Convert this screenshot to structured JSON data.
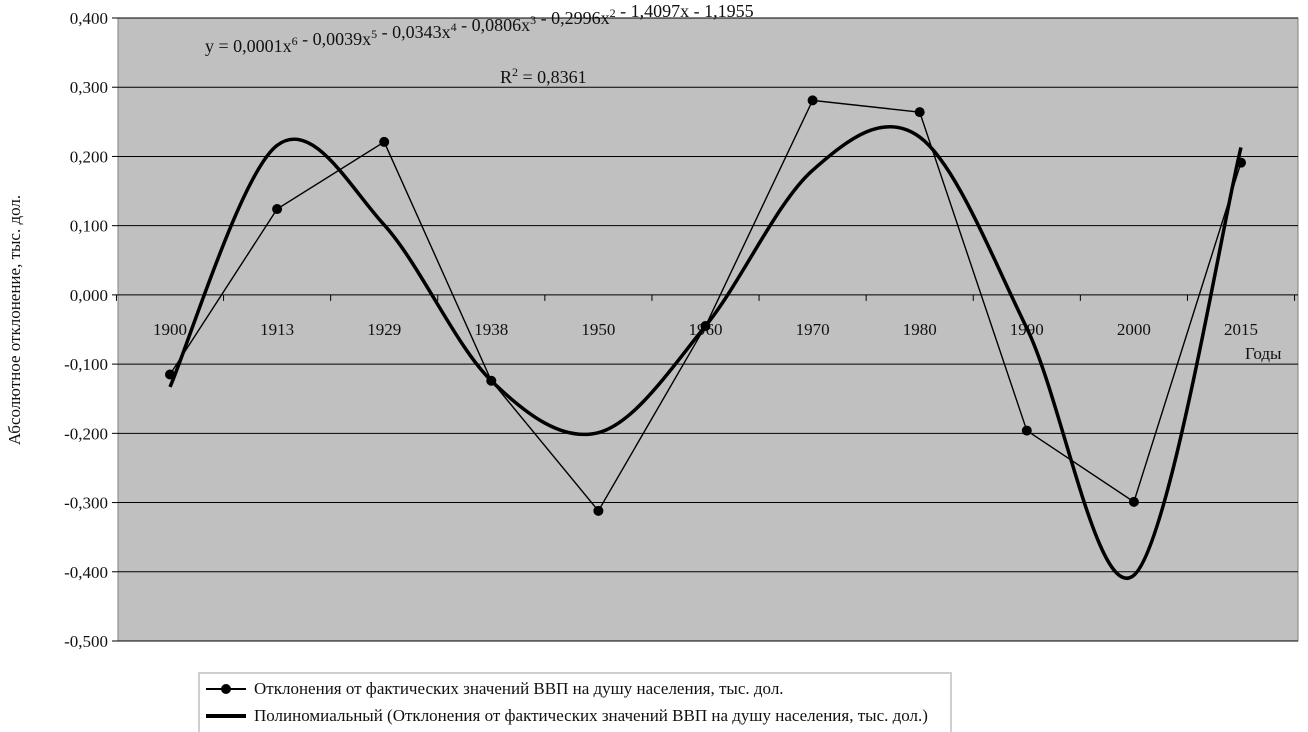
{
  "chart_data": {
    "type": "line",
    "x_categories": [
      "1900",
      "1913",
      "1929",
      "1938",
      "1950",
      "1960",
      "1970",
      "1980",
      "1990",
      "2000",
      "2015"
    ],
    "y_ticks": [
      "0,400",
      "0,300",
      "0,200",
      "0,100",
      "0,000",
      "-0,100",
      "-0,200",
      "-0,300",
      "-0,400",
      "-0,500"
    ],
    "ylim": [
      -0.5,
      0.4
    ],
    "ylabel": "Абсолютное отклонение, тыс. дол.",
    "xlabel": "Годы",
    "grid": true,
    "background": "#c0c0c0",
    "series": [
      {
        "name": "Отклонения от фактических значений ВВП на душу населения, тыс. дол.",
        "values": [
          -0.115,
          0.124,
          0.221,
          -0.124,
          -0.312,
          -0.045,
          0.281,
          0.264,
          -0.196,
          -0.299,
          0.191
        ],
        "marker": "circle",
        "color": "#000000"
      },
      {
        "name": "Полиномиальный (Отклонения от фактических значений ВВП на душу населения, тыс. дол.)",
        "type": "trendline",
        "values": [
          -0.133,
          0.216,
          0.101,
          -0.124,
          -0.199,
          -0.045,
          0.18,
          0.228,
          -0.048,
          -0.405,
          0.213
        ],
        "color": "#000000"
      }
    ],
    "annotations": {
      "equation_prefix": "y = 0,0001x",
      "equation_parts": [
        {
          "text": "y = 0,0001x",
          "sup": "6"
        },
        {
          "text": " - 0,0039x",
          "sup": "5"
        },
        {
          "text": " - 0,0343x",
          "sup": "4"
        },
        {
          "text": " - 0,0806x",
          "sup": "3"
        },
        {
          "text": " - 0,2996x",
          "sup": "2"
        },
        {
          "text": " - 1,4097x - 1,1955",
          "sup": ""
        }
      ],
      "r2_prefix": "R",
      "r2_sup": "2",
      "r2_value": " = 0,8361"
    }
  }
}
